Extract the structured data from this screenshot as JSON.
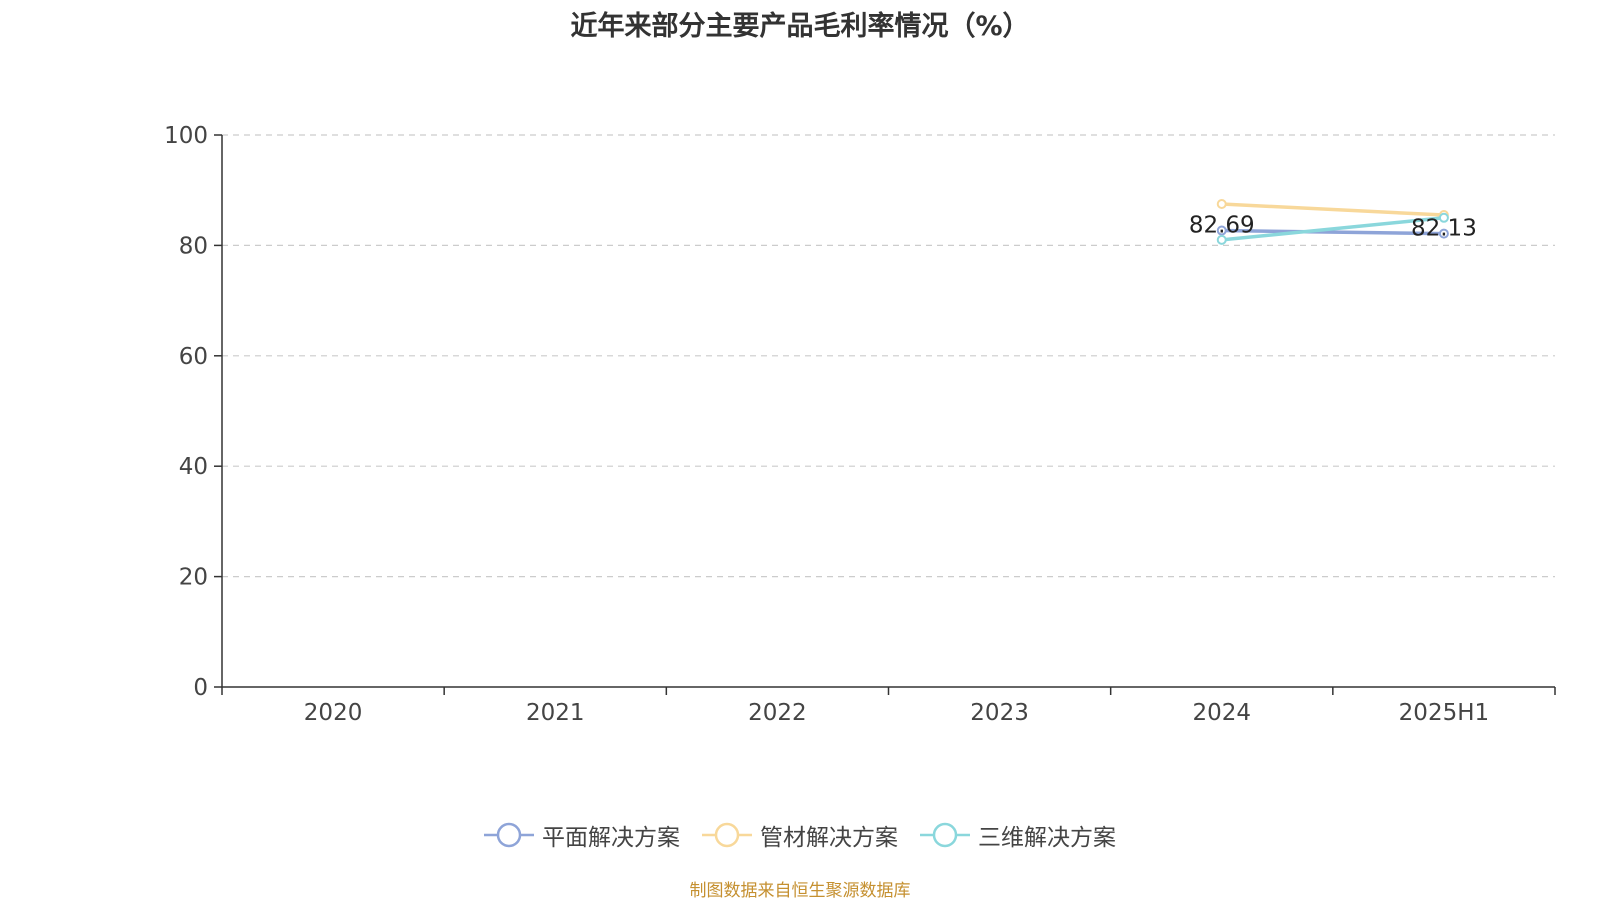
{
  "chart_data": {
    "type": "line",
    "title": "近年来部分主要产品毛利率情况（%）",
    "categories": [
      "2020",
      "2021",
      "2022",
      "2023",
      "2024",
      "2025H1"
    ],
    "ylim": [
      0,
      100
    ],
    "yticks": [
      0,
      20,
      40,
      60,
      80,
      100
    ],
    "grid": true,
    "legend_position": "bottom",
    "series": [
      {
        "name": "平面解决方案",
        "color": "#8ea4d8",
        "values": [
          null,
          null,
          null,
          null,
          82.69,
          82.13
        ],
        "labels": [
          "",
          "",
          "",
          "",
          "82.69",
          "82.13"
        ]
      },
      {
        "name": "管材解决方案",
        "color": "#f8d89a",
        "values": [
          null,
          null,
          null,
          null,
          87.5,
          85.5
        ],
        "labels": [
          "",
          "",
          "",
          "",
          "",
          ""
        ]
      },
      {
        "name": "三维解决方案",
        "color": "#8ad7dc",
        "values": [
          null,
          null,
          null,
          null,
          81.0,
          85.0
        ],
        "labels": [
          "",
          "",
          "",
          "",
          "",
          ""
        ]
      }
    ]
  },
  "source": "制图数据来自恒生聚源数据库"
}
